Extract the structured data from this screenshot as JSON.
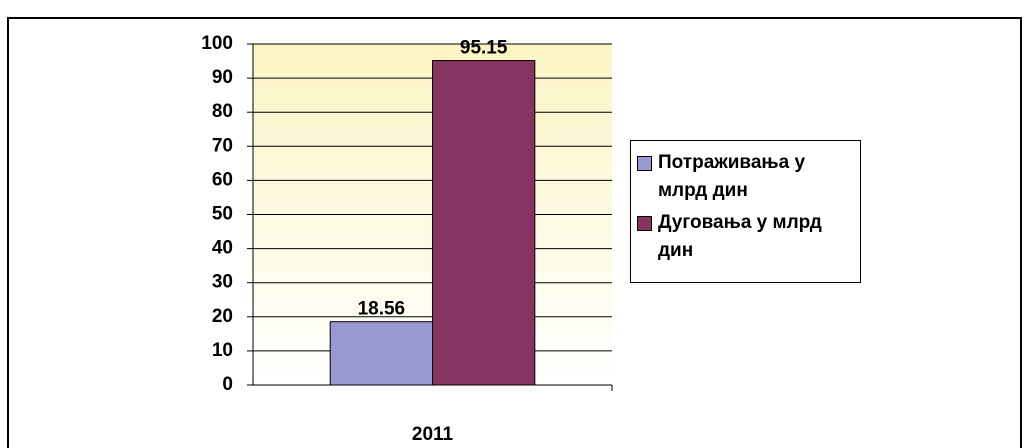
{
  "chart_data": {
    "type": "bar",
    "categories": [
      "2011"
    ],
    "series": [
      {
        "name": "Потраживања у млрд дин",
        "color": "#9999d0",
        "values": [
          18.56
        ]
      },
      {
        "name": "Дуговања у млрд дин",
        "color": "#883462",
        "values": [
          95.15
        ]
      }
    ],
    "ylim": [
      0,
      100
    ],
    "yticks": [
      0,
      10,
      20,
      30,
      40,
      50,
      60,
      70,
      80,
      90,
      100
    ],
    "grid": true,
    "legend": "right"
  }
}
